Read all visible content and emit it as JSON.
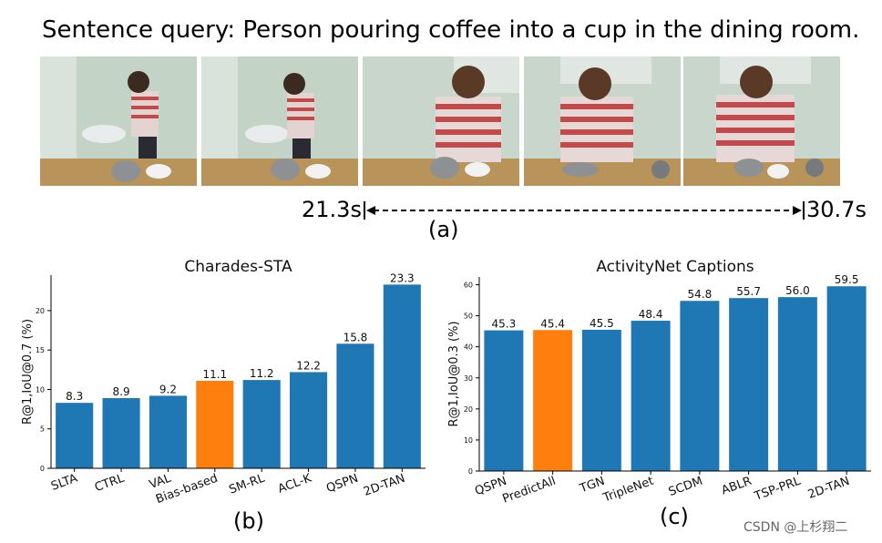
{
  "sentence_query": "Sentence query: Person pouring coffee into a cup in the dining room.",
  "timeline": {
    "start": "21.3s",
    "end": "30.7s"
  },
  "panel_labels": {
    "a": "(a)",
    "b": "(b)",
    "c": "(c)"
  },
  "watermark": "CSDN @上杉翔二",
  "colors": {
    "bar": "#1f77b4",
    "highlight": "#ff7f0e"
  },
  "chart_data": [
    {
      "type": "bar",
      "title": "Charades-STA",
      "xlabel": "",
      "ylabel": "R@1,IoU@0.7 (%)",
      "categories": [
        "SLTA",
        "CTRL",
        "VAL",
        "Bias-based",
        "SM-RL",
        "ACL-K",
        "QSPN",
        "2D-TAN"
      ],
      "values": [
        8.3,
        8.9,
        9.2,
        11.1,
        11.2,
        12.2,
        15.8,
        23.3
      ],
      "value_labels": [
        "8.3",
        "8.9",
        "9.2",
        "11.1",
        "11.2",
        "12.2",
        "15.8",
        "23.3"
      ],
      "highlight": "Bias-based",
      "ylim": [
        0,
        24.5
      ],
      "yticks": [
        0,
        5,
        10,
        15,
        20
      ],
      "ytick_labels": [
        "0",
        "5",
        "10",
        "15",
        "20"
      ]
    },
    {
      "type": "bar",
      "title": "ActivityNet Captions",
      "xlabel": "",
      "ylabel": "R@1,IoU@0.3 (%)",
      "categories": [
        "QSPN",
        "PredictAll",
        "TGN",
        "TripleNet",
        "SCDM",
        "ABLR",
        "TSP-PRL",
        "2D-TAN"
      ],
      "values": [
        45.3,
        45.4,
        45.5,
        48.4,
        54.8,
        55.7,
        56.0,
        59.5
      ],
      "value_labels": [
        "45.3",
        "45.4",
        "45.5",
        "48.4",
        "54.8",
        "55.7",
        "56.0",
        "59.5"
      ],
      "highlight": "PredictAll",
      "ylim": [
        0,
        62.5
      ],
      "yticks": [
        0,
        10,
        20,
        30,
        40,
        50,
        60
      ],
      "ytick_labels": [
        "0",
        "10",
        "20",
        "30",
        "40",
        "50",
        "60"
      ]
    }
  ]
}
